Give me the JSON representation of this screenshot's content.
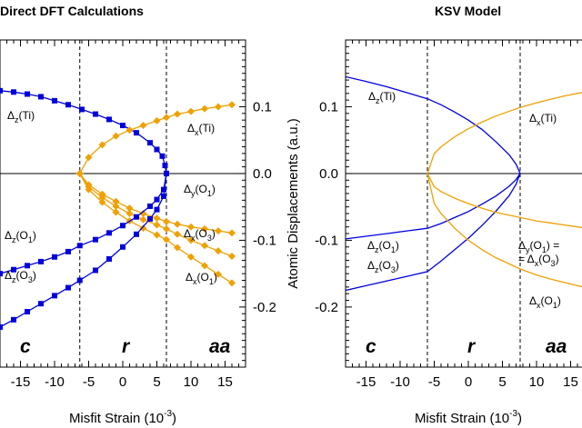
{
  "chart_data": [
    {
      "type": "line",
      "title": "Direct DFT Calculations",
      "xlabel": "Misfit Strain (10^-3)",
      "xlabel_main": "Misfit Strain (10",
      "xlabel_sup": "-3",
      "xlabel_end": ")",
      "ylabel": "",
      "xlim": [
        -18,
        18
      ],
      "ylim": [
        -0.29,
        0.2
      ],
      "x_ticks": [
        "-15",
        "-10",
        "-5",
        "0",
        "5",
        "10",
        "15"
      ],
      "y_ticks": [
        "0.1",
        "0.0",
        "-0.1",
        "-0.2"
      ],
      "y_axis_side": "right",
      "phase_boundaries": [
        -6.3,
        6.4
      ],
      "regions": [
        "c",
        "r",
        "aa"
      ],
      "series": [
        {
          "name": "Δz(Ti)",
          "color": "#0000dd",
          "marker": "square",
          "x": [
            -18,
            -16,
            -14,
            -12,
            -10,
            -8,
            -6,
            -4,
            -2,
            0,
            2,
            4,
            5,
            5.8,
            6.2,
            6.4
          ],
          "y": [
            0.124,
            0.122,
            0.119,
            0.115,
            0.109,
            0.103,
            0.096,
            0.089,
            0.081,
            0.072,
            0.061,
            0.046,
            0.036,
            0.026,
            0.012,
            0.0
          ]
        },
        {
          "name": "Δx(Ti)",
          "color": "#f0a000",
          "marker": "diamond",
          "x": [
            -6.3,
            -5,
            -3,
            -1,
            1,
            3,
            5,
            6.4,
            8,
            10,
            12,
            14,
            16
          ],
          "y": [
            0.0,
            0.024,
            0.043,
            0.056,
            0.065,
            0.072,
            0.079,
            0.084,
            0.089,
            0.093,
            0.097,
            0.1,
            0.103
          ]
        },
        {
          "name": "Δy(O1)",
          "color": "#f0a000",
          "marker": "diamond",
          "x": [
            -6.3,
            -5,
            -3,
            -1,
            1,
            3,
            5,
            6.4,
            8,
            10,
            12,
            14,
            16
          ],
          "y": [
            0.0,
            -0.017,
            -0.031,
            -0.042,
            -0.052,
            -0.06,
            -0.067,
            -0.072,
            -0.076,
            -0.08,
            -0.083,
            -0.086,
            -0.089
          ]
        },
        {
          "name": "Δx(O3)",
          "color": "#f0a000",
          "marker": "diamond",
          "x": [
            -6.3,
            -5,
            -3,
            -1,
            1,
            3,
            5,
            6.4,
            8,
            10,
            12,
            14,
            16
          ],
          "y": [
            0.0,
            -0.02,
            -0.036,
            -0.049,
            -0.06,
            -0.069,
            -0.077,
            -0.083,
            -0.091,
            -0.1,
            -0.108,
            -0.116,
            -0.124
          ]
        },
        {
          "name": "Δx(O1)",
          "color": "#f0a000",
          "marker": "diamond",
          "x": [
            -6.3,
            -5,
            -3,
            -1,
            1,
            3,
            5,
            6.4,
            8,
            10,
            12,
            14,
            16
          ],
          "y": [
            0.0,
            -0.024,
            -0.043,
            -0.058,
            -0.071,
            -0.082,
            -0.092,
            -0.099,
            -0.111,
            -0.125,
            -0.138,
            -0.151,
            -0.164
          ]
        },
        {
          "name": "Δz(O1)",
          "color": "#0000dd",
          "marker": "square",
          "x": [
            -18,
            -16,
            -14,
            -12,
            -10,
            -8,
            -6.3,
            -4,
            -2,
            0,
            2,
            4,
            5,
            6,
            6.4
          ],
          "y": [
            -0.15,
            -0.144,
            -0.138,
            -0.132,
            -0.125,
            -0.117,
            -0.108,
            -0.099,
            -0.089,
            -0.078,
            -0.065,
            -0.049,
            -0.039,
            -0.024,
            0.0
          ]
        },
        {
          "name": "Δz(O3)",
          "color": "#0000dd",
          "marker": "square",
          "x": [
            -18,
            -16,
            -14,
            -12,
            -10,
            -8,
            -6.3,
            -4,
            -2,
            0,
            2,
            4,
            5,
            6,
            6.4
          ],
          "y": [
            -0.23,
            -0.219,
            -0.207,
            -0.195,
            -0.183,
            -0.171,
            -0.16,
            -0.145,
            -0.128,
            -0.11,
            -0.091,
            -0.068,
            -0.054,
            -0.034,
            0.0
          ]
        }
      ],
      "labels": [
        {
          "base": "Δ",
          "sub": "z",
          "atom": "Ti",
          "num": ""
        },
        {
          "base": "Δ",
          "sub": "x",
          "atom": "Ti",
          "num": ""
        },
        {
          "base": "Δ",
          "sub": "y",
          "atom": "O",
          "num": "1"
        },
        {
          "base": "Δ",
          "sub": "x",
          "atom": "O",
          "num": "3"
        },
        {
          "base": "Δ",
          "sub": "x",
          "atom": "O",
          "num": "1"
        },
        {
          "base": "Δ",
          "sub": "z",
          "atom": "O",
          "num": "1"
        },
        {
          "base": "Δ",
          "sub": "z",
          "atom": "O",
          "num": "3"
        }
      ]
    },
    {
      "type": "line",
      "title": "KSV Model",
      "xlabel": "Misfit Strain (10^-3)",
      "xlabel_main": "Misfit Strain (10",
      "xlabel_sup": "-3",
      "xlabel_end": ")",
      "ylabel": "Atomic Displacements (a.u.)",
      "xlim": [
        -18,
        18
      ],
      "ylim": [
        -0.29,
        0.2
      ],
      "x_ticks": [
        "-15",
        "-10",
        "-5",
        "0",
        "5",
        "10",
        "15"
      ],
      "y_ticks": [
        "0.1",
        "0.0",
        "-0.1",
        "-0.2"
      ],
      "y_axis_side": "left",
      "phase_boundaries": [
        -6.0,
        7.6
      ],
      "regions": [
        "c",
        "r",
        "aa"
      ],
      "series": [
        {
          "name": "Δz(Ti)",
          "color": "#0000dd",
          "x": [
            -18,
            -15,
            -12,
            -9,
            -6,
            -4,
            -2,
            0,
            2,
            4,
            6,
            7,
            7.6
          ],
          "y": [
            0.145,
            0.138,
            0.13,
            0.121,
            0.112,
            0.103,
            0.092,
            0.08,
            0.066,
            0.048,
            0.028,
            0.014,
            0.0
          ]
        },
        {
          "name": "Δz(O1)",
          "color": "#0000dd",
          "x": [
            -18,
            -15,
            -12,
            -9,
            -6,
            -4,
            -2,
            0,
            2,
            4,
            6,
            7,
            7.6
          ],
          "y": [
            -0.098,
            -0.094,
            -0.09,
            -0.086,
            -0.082,
            -0.075,
            -0.066,
            -0.057,
            -0.046,
            -0.034,
            -0.019,
            -0.009,
            0.0
          ]
        },
        {
          "name": "Δz(O3)",
          "color": "#0000dd",
          "x": [
            -18,
            -15,
            -12,
            -9,
            -6,
            -4,
            -2,
            0,
            2,
            4,
            6,
            7,
            7.6
          ],
          "y": [
            -0.175,
            -0.168,
            -0.161,
            -0.154,
            -0.147,
            -0.131,
            -0.114,
            -0.097,
            -0.078,
            -0.057,
            -0.033,
            -0.016,
            0.0
          ]
        },
        {
          "name": "Δx(Ti)",
          "color": "#f0a000",
          "x": [
            -6,
            -5,
            -4,
            -2,
            0,
            2,
            4,
            7.6,
            10,
            12,
            14,
            16,
            18
          ],
          "y": [
            0.0,
            0.03,
            0.04,
            0.055,
            0.067,
            0.077,
            0.086,
            0.099,
            0.106,
            0.111,
            0.116,
            0.12,
            0.124
          ]
        },
        {
          "name": "Δy(O1) = Δx(O3)",
          "color": "#f0a000",
          "x": [
            -6,
            -5,
            -4,
            -2,
            0,
            2,
            4,
            7.6,
            10,
            12,
            14,
            16,
            18
          ],
          "y": [
            0.0,
            -0.02,
            -0.027,
            -0.037,
            -0.045,
            -0.052,
            -0.058,
            -0.066,
            -0.071,
            -0.074,
            -0.077,
            -0.08,
            -0.083
          ]
        },
        {
          "name": "Δx(O1)",
          "color": "#f0a000",
          "x": [
            -6,
            -5,
            -4,
            -2,
            0,
            2,
            4,
            7.6,
            10,
            12,
            14,
            16,
            18
          ],
          "y": [
            0.0,
            -0.045,
            -0.06,
            -0.082,
            -0.1,
            -0.114,
            -0.126,
            -0.143,
            -0.152,
            -0.158,
            -0.163,
            -0.168,
            -0.173
          ]
        }
      ],
      "labels": [
        {
          "base": "Δ",
          "sub": "z",
          "atom": "Ti",
          "num": ""
        },
        {
          "base": "Δ",
          "sub": "x",
          "atom": "Ti",
          "num": ""
        },
        {
          "base": "Δ",
          "sub": "y",
          "atom": "O",
          "num": "1",
          "suffix": " ="
        },
        {
          "base": "= Δ",
          "sub": "x",
          "atom": "O",
          "num": "3"
        },
        {
          "base": "Δ",
          "sub": "z",
          "atom": "O",
          "num": "1"
        },
        {
          "base": "Δ",
          "sub": "z",
          "atom": "O",
          "num": "3"
        },
        {
          "base": "Δ",
          "sub": "x",
          "atom": "O",
          "num": "1"
        }
      ]
    }
  ]
}
